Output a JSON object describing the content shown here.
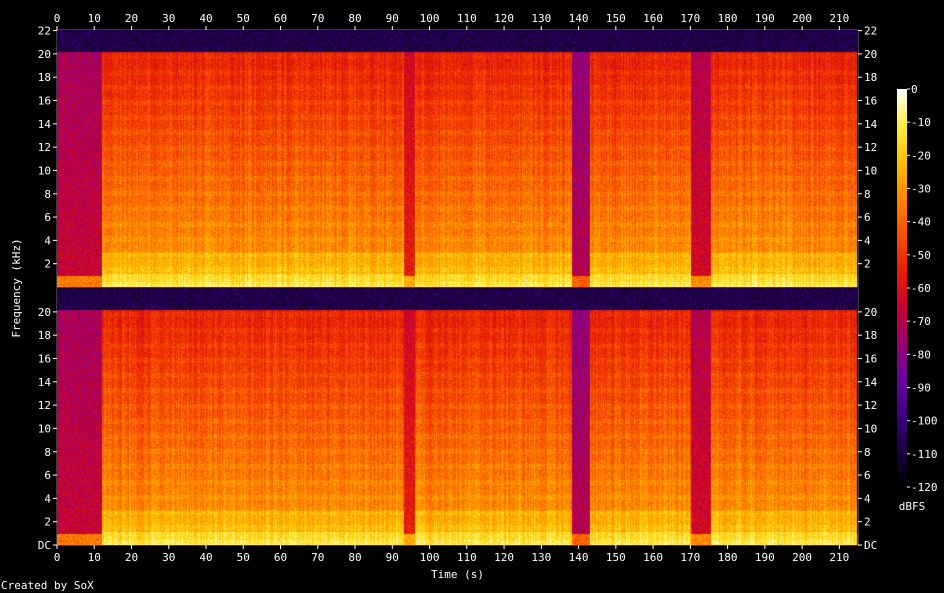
{
  "chart_data": {
    "type": "heatmap",
    "title": "",
    "xlabel": "Time (s)",
    "ylabel": "Frequency (kHz)",
    "colorbar_label": "dBFS",
    "footer": "Created by SoX",
    "xlim": [
      0,
      215
    ],
    "ylim": [
      0,
      22.05
    ],
    "x_ticks": [
      0,
      10,
      20,
      30,
      40,
      50,
      60,
      70,
      80,
      90,
      100,
      110,
      120,
      130,
      140,
      150,
      160,
      170,
      180,
      190,
      200,
      210
    ],
    "x_tick_labels": [
      "0",
      "10",
      "20",
      "30",
      "40",
      "50",
      "60",
      "70",
      "80",
      "90",
      "100",
      "110",
      "120",
      "130",
      "140",
      "150",
      "160",
      "170",
      "180",
      "190",
      "200",
      "210"
    ],
    "channels": [
      {
        "name": "",
        "y_ticks": [
          2,
          4,
          6,
          8,
          10,
          12,
          14,
          16,
          18,
          20,
          22
        ],
        "y_tick_labels": [
          "2",
          "4",
          "6",
          "8",
          "10",
          "12",
          "14",
          "16",
          "18",
          "20",
          "22"
        ]
      },
      {
        "name": "",
        "y_ticks": [
          0,
          2,
          4,
          6,
          8,
          10,
          12,
          14,
          16,
          18,
          20
        ],
        "y_tick_labels": [
          "DC",
          "2",
          "4",
          "6",
          "8",
          "10",
          "12",
          "14",
          "16",
          "18",
          "20"
        ]
      }
    ],
    "colorbar_ticks": [
      0,
      -10,
      -20,
      -30,
      -40,
      -50,
      -60,
      -70,
      -80,
      -90,
      -100,
      -110,
      -120
    ],
    "colorbar_tick_labels": [
      "0",
      "-10",
      "-20",
      "-30",
      "-40",
      "-50",
      "-60",
      "-70",
      "-80",
      "-90",
      "-100",
      "-110",
      "-120"
    ],
    "clim": [
      -120,
      0
    ],
    "colormap": [
      "#000000",
      "#1a0040",
      "#3c0080",
      "#6a00a0",
      "#9a0070",
      "#c80030",
      "#e82000",
      "#f85000",
      "#ff8800",
      "#ffc000",
      "#ffee40",
      "#ffffff"
    ],
    "cutoff_khz": 20.2,
    "quiet_regions": [
      {
        "start_s": 0,
        "end_s": 12,
        "level_db": -65
      },
      {
        "start_s": 93,
        "end_s": 96,
        "level_db": -55
      },
      {
        "start_s": 138,
        "end_s": 143,
        "level_db": -70
      },
      {
        "start_s": 170,
        "end_s": 175.5,
        "level_db": -62
      },
      {
        "start_s": 214.5,
        "end_s": 215,
        "level_db": -110
      }
    ]
  }
}
